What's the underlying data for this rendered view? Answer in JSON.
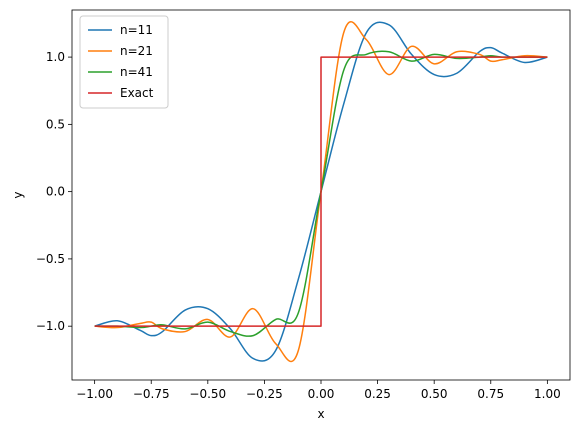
{
  "chart_data": {
    "type": "line",
    "title": "",
    "xlabel": "x",
    "ylabel": "y",
    "xlim": [
      -1.1,
      1.1
    ],
    "ylim": [
      -1.4,
      1.35
    ],
    "xticks": [
      -1.0,
      -0.75,
      -0.5,
      -0.25,
      0.0,
      0.25,
      0.5,
      0.75,
      1.0
    ],
    "xtick_labels": [
      "−1.00",
      "−0.75",
      "−0.50",
      "−0.25",
      "0.00",
      "0.25",
      "0.50",
      "0.75",
      "1.00"
    ],
    "yticks": [
      -1.0,
      -0.5,
      0.0,
      0.5,
      1.0
    ],
    "ytick_labels": [
      "−1.0",
      "−0.5",
      "0.0",
      "0.5",
      "1.0"
    ],
    "grid": false,
    "legend_position": "top-left",
    "x": [
      -1.0,
      -0.9,
      -0.8,
      -0.75,
      -0.7,
      -0.6,
      -0.5,
      -0.4,
      -0.3,
      -0.2,
      -0.1,
      0.0,
      0.1,
      0.2,
      0.3,
      0.4,
      0.5,
      0.6,
      0.7,
      0.75,
      0.8,
      0.9,
      1.0
    ],
    "series": [
      {
        "name": "n=11",
        "color": "#1f77b4",
        "values": [
          -1.0,
          -0.96,
          -1.03,
          -1.07,
          -1.04,
          -0.88,
          -0.87,
          -1.02,
          -1.24,
          -1.18,
          -0.65,
          0.0,
          0.65,
          1.18,
          1.24,
          1.02,
          0.87,
          0.88,
          1.04,
          1.07,
          1.03,
          0.96,
          1.0
        ]
      },
      {
        "name": "n=21",
        "color": "#ff7f0e",
        "values": [
          -1.0,
          -1.01,
          -0.98,
          -0.97,
          -1.02,
          -1.04,
          -0.95,
          -1.08,
          -0.87,
          -1.13,
          -1.18,
          0.0,
          1.18,
          1.13,
          0.87,
          1.08,
          0.95,
          1.04,
          1.02,
          0.97,
          0.98,
          1.01,
          1.0
        ]
      },
      {
        "name": "n=41",
        "color": "#2ca02c",
        "values": [
          -1.0,
          -1.0,
          -1.01,
          -1.0,
          -0.99,
          -1.02,
          -0.97,
          -1.04,
          -1.07,
          -0.95,
          -0.9,
          0.0,
          0.9,
          1.02,
          1.04,
          0.97,
          1.02,
          0.99,
          1.0,
          1.01,
          1.0,
          1.0,
          1.0
        ]
      },
      {
        "name": "Exact",
        "color": "#d62728",
        "values": [
          -1.0,
          -1.0,
          -1.0,
          -1.0,
          -1.0,
          -1.0,
          -1.0,
          -1.0,
          -1.0,
          -1.0,
          -1.0,
          0.0,
          1.0,
          1.0,
          1.0,
          1.0,
          1.0,
          1.0,
          1.0,
          1.0,
          1.0,
          1.0,
          1.0
        ]
      }
    ]
  }
}
